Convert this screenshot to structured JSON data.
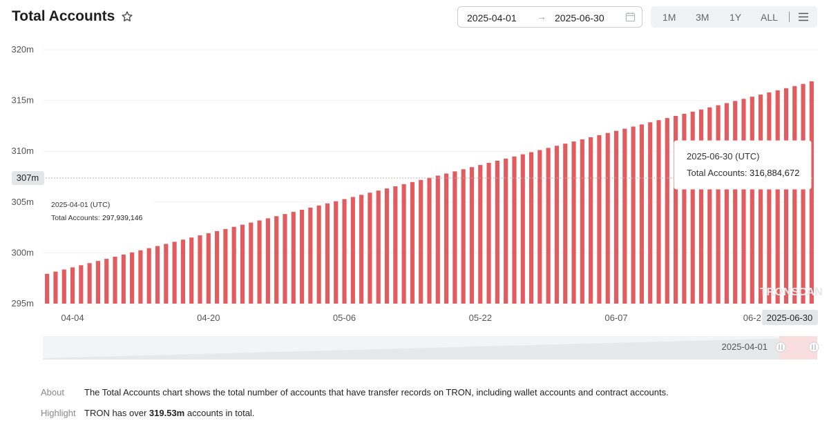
{
  "header": {
    "title": "Total Accounts",
    "date_start": "2025-04-01",
    "date_arrow": "→",
    "date_end": "2025-06-30",
    "ranges": [
      "1M",
      "3M",
      "1Y",
      "ALL"
    ]
  },
  "watermark": "TRONSCAN",
  "chart_data": {
    "type": "bar",
    "title": "Total Accounts",
    "x_start": "2025-04-01",
    "x_end": "2025-06-30",
    "x_tick_labels": [
      "04-04",
      "04-20",
      "05-06",
      "05-22",
      "06-07",
      "06-2"
    ],
    "y_tick_labels": [
      "295m",
      "300m",
      "305m",
      "310m",
      "315m",
      "320m"
    ],
    "ylim": [
      295000000,
      320000000
    ],
    "bar_color": "#e25c5f",
    "series": [
      {
        "values": [
          297939146,
          298150000,
          298360000,
          298570000,
          298780000,
          298990000,
          299200000,
          299410000,
          299620000,
          299830000,
          300040000,
          300250000,
          300460000,
          300670000,
          300880000,
          301090000,
          301300000,
          301510000,
          301720000,
          301930000,
          302140000,
          302350000,
          302560000,
          302770000,
          302980000,
          303190000,
          303400000,
          303610000,
          303820000,
          304030000,
          304240000,
          304450000,
          304660000,
          304870000,
          305080000,
          305290000,
          305500000,
          305710000,
          305920000,
          306130000,
          306340000,
          306550000,
          306760000,
          306970000,
          307180000,
          307390000,
          307600000,
          307810000,
          308020000,
          308230000,
          308440000,
          308650000,
          308860000,
          309070000,
          309280000,
          309490000,
          309700000,
          309910000,
          310120000,
          310330000,
          310540000,
          310750000,
          310960000,
          311170000,
          311380000,
          311590000,
          311800000,
          312010000,
          312220000,
          312430000,
          312640000,
          312850000,
          313060000,
          313270000,
          313480000,
          313690000,
          313900000,
          314110000,
          314320000,
          314530000,
          314740000,
          314950000,
          315160000,
          315370000,
          315580000,
          315790000,
          316000000,
          316210000,
          316420000,
          316630000,
          316884672
        ]
      }
    ],
    "crosshair_label": "307m",
    "tooltips": [
      {
        "date": "2025-04-01 (UTC)",
        "label": "Total Accounts:",
        "value": "297,939,146"
      },
      {
        "date": "2025-06-30 (UTC)",
        "label": "Total Accounts:",
        "value": "316,884,672"
      }
    ],
    "x_hover_label": "2025-06-30",
    "slider_label": "2025-04-01"
  },
  "about": {
    "label": "About",
    "text": "The Total Accounts chart shows the total number of accounts that have transfer records on TRON, including wallet accounts and contract accounts."
  },
  "highlight": {
    "label": "Highlight",
    "prefix": "TRON has over ",
    "value": "319.53m",
    "suffix": " accounts in total."
  }
}
